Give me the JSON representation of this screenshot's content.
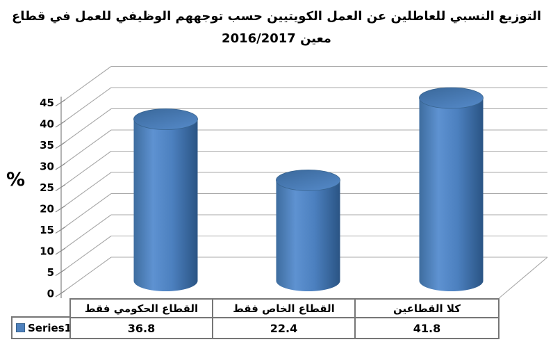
{
  "title": {
    "line1": "التوزيع النسبي للعاطلين عن العمل الكويتيين حسب توجههم الوظيفي للعمل في قطاع",
    "line2": "معين 2016/2017"
  },
  "y_axis": {
    "unit_label": "%"
  },
  "chart_data": {
    "type": "bar",
    "style": "3d-cylinder",
    "title": "التوزيع النسبي للعاطلين عن العمل الكويتيين حسب توجههم الوظيفي للعمل في قطاع معين 2016/2017",
    "categories": [
      "القطاع الحكومي فقط",
      "القطاع الخاص فقط",
      "كلا القطاعين"
    ],
    "series": [
      {
        "name": "Series1",
        "values": [
          36.8,
          22.4,
          41.8
        ]
      }
    ],
    "xlabel": "",
    "ylabel": "%",
    "ylim": [
      0,
      45
    ],
    "yticks": [
      0,
      5,
      10,
      15,
      20,
      25,
      30,
      35,
      40,
      45
    ],
    "grid": true,
    "legend_position": "bottom-left-table"
  },
  "colors": {
    "title_text": "#000000",
    "gridline": "#a8a8a8",
    "axis": "#8a8a8a",
    "table_border": "#767676",
    "legend_marker": "#4f81bd",
    "bar_edge_dark": "#2a5484",
    "bar_left_shade": "#3e6d9f",
    "bar_highlight": "#5e92d1",
    "bar_mid": "#4c80bf",
    "bar_top_dark": "#3a689a",
    "bar_top_light": "#5286c4",
    "bar_top_stroke": "#38648f"
  }
}
